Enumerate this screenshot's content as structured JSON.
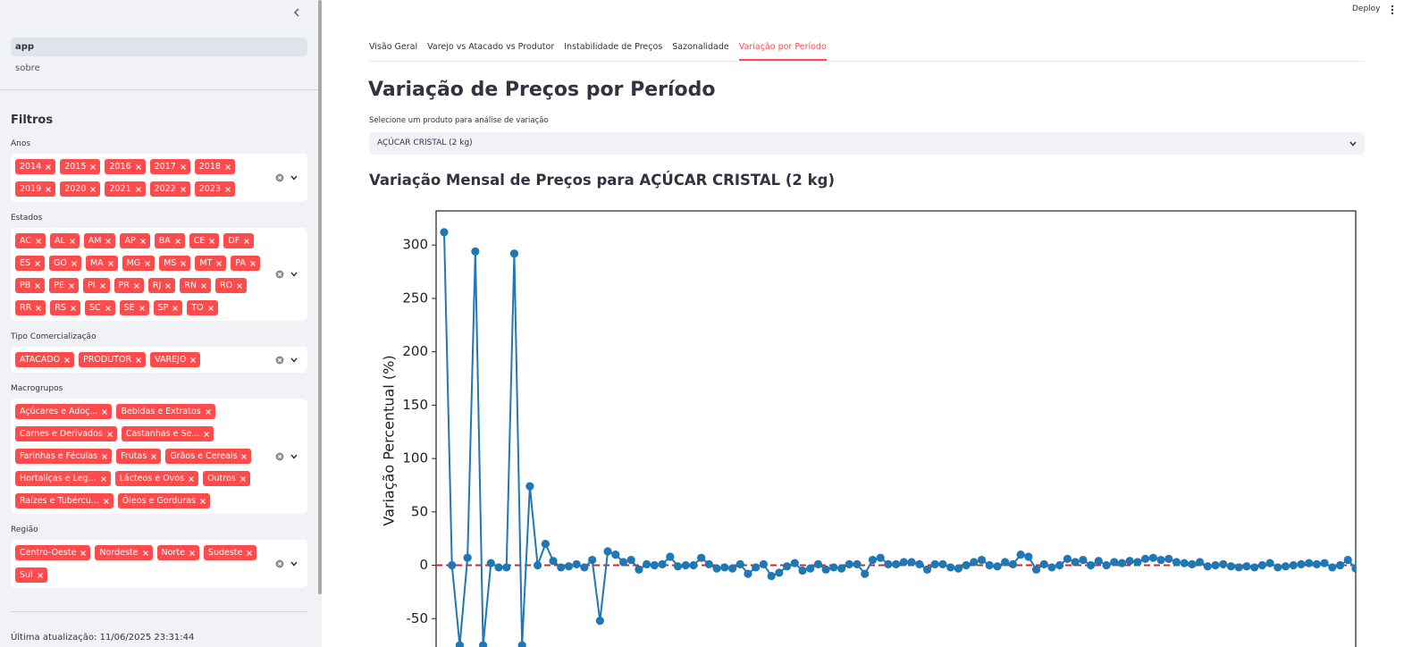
{
  "header": {
    "deploy": "Deploy"
  },
  "sidebar": {
    "nav": [
      "app",
      "sobre"
    ],
    "active_nav": 0,
    "filters_title": "Filtros",
    "filters": [
      {
        "label": "Anos",
        "options": [
          "2014",
          "2015",
          "2016",
          "2017",
          "2018",
          "2019",
          "2020",
          "2021",
          "2022",
          "2023"
        ]
      },
      {
        "label": "Estados",
        "options": [
          "AC",
          "AL",
          "AM",
          "AP",
          "BA",
          "CE",
          "DF",
          "ES",
          "GO",
          "MA",
          "MG",
          "MS",
          "MT",
          "PA",
          "PB",
          "PE",
          "PI",
          "PR",
          "RJ",
          "RN",
          "RO",
          "RR",
          "RS",
          "SC",
          "SE",
          "SP",
          "TO"
        ]
      },
      {
        "label": "Tipo Comercialização",
        "options": [
          "ATACADO",
          "PRODUTOR",
          "VAREJO"
        ]
      },
      {
        "label": "Macrogrupos",
        "options": [
          "Açúcares e Adoç...",
          "Bebidas e Extratos",
          "Carnes e Derivados",
          "Castanhas e Se...",
          "Farinhas e Féculas",
          "Frutas",
          "Grãos e Cereais",
          "Hortaliças e Leg...",
          "Lácteos e Ovos",
          "Outros",
          "Raízes e Tubércu...",
          "Óleos e Gorduras"
        ]
      },
      {
        "label": "Região",
        "options": [
          "Centro-Oeste",
          "Nordeste",
          "Norte",
          "Sudeste",
          "Sul"
        ]
      }
    ],
    "last_update": "Última atualização: 11/06/2025 23:31:44"
  },
  "tabs": {
    "items": [
      "Visão Geral",
      "Varejo vs Atacado vs Produtor",
      "Instabilidade de Preços",
      "Sazonalidade",
      "Variação por Período"
    ],
    "active": 4
  },
  "main": {
    "title": "Variação de Preços por Período",
    "select_label": "Selecione um produto para análise de variação",
    "select_value": "AÇÚCAR CRISTAL (2 kg)",
    "subtitle": "Variação Mensal de Preços para AÇÚCAR CRISTAL (2 kg)"
  },
  "chart_data": {
    "type": "line",
    "ylabel": "Variação Percentual (%)",
    "color": "#1f77b4",
    "values": [
      312,
      0,
      -75,
      7,
      294,
      -75,
      2,
      -2,
      -2,
      292,
      -75,
      74,
      0,
      20,
      4,
      -2,
      -1,
      1,
      -2,
      5,
      -52,
      13,
      10,
      3,
      5,
      -4,
      1,
      0,
      1,
      8,
      -1,
      0,
      0,
      7,
      1,
      -3,
      -2,
      -3,
      1,
      -8,
      -2,
      1,
      -10,
      -7,
      -1,
      2,
      -5,
      -3,
      1,
      -4,
      -2,
      -3,
      1,
      1,
      -8,
      5,
      7,
      1,
      1,
      3,
      3,
      1,
      -4,
      1,
      1,
      -2,
      -3,
      0,
      3,
      5,
      0,
      -1,
      3,
      1,
      10,
      8,
      -4,
      1,
      -2,
      0,
      6,
      3,
      5,
      0,
      4,
      0,
      3,
      2,
      4,
      3,
      6,
      7,
      5,
      6,
      3,
      2,
      1,
      3,
      -1,
      0,
      1,
      -1,
      -2,
      -1,
      -2,
      0,
      2,
      -2,
      -1,
      0,
      1,
      2,
      1,
      2,
      -2,
      0,
      5,
      -3
    ],
    "reference_line": {
      "value": 0,
      "color": "#d62728"
    },
    "ylim": [
      -95,
      332
    ],
    "yticks": [
      -50,
      0,
      50,
      100,
      150,
      200,
      250,
      300
    ]
  }
}
